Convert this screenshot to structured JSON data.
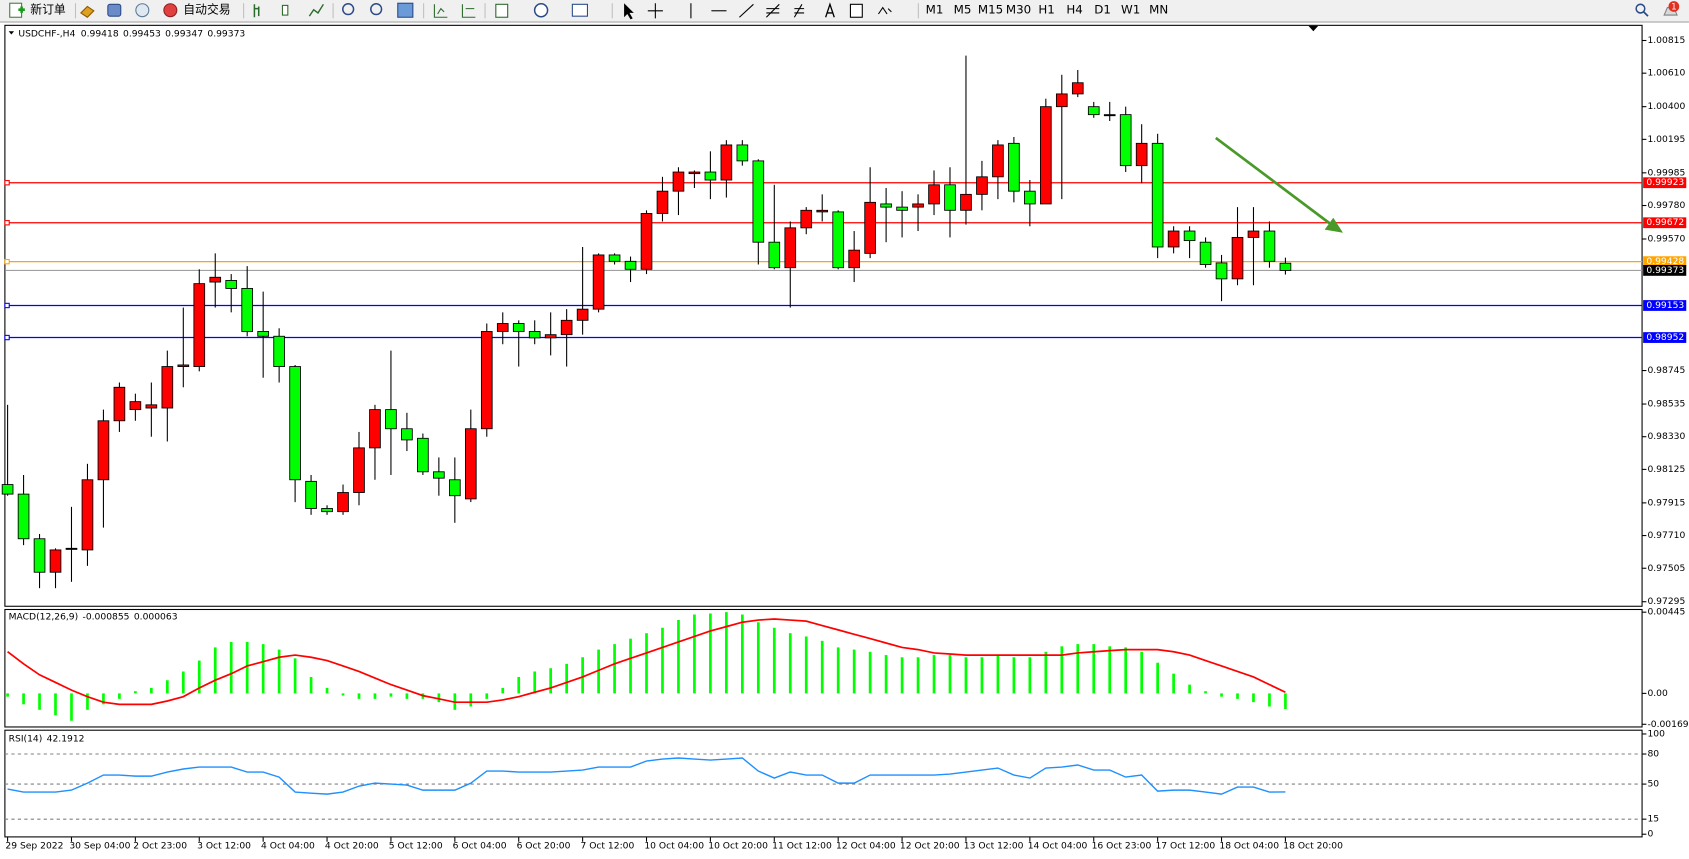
{
  "toolbar": {
    "new_order": "新订单",
    "auto_trading": "自动交易",
    "timeframes": [
      "M1",
      "M5",
      "M15",
      "M30",
      "H1",
      "H4",
      "D1",
      "W1",
      "MN"
    ],
    "badge": "1"
  },
  "chart_data": [
    {
      "type": "candlestick",
      "symbol": "USDCHF-,H4",
      "up_color": "#ff0000",
      "down_color": "#00ff00",
      "wick_color": "#000000",
      "categories": [
        "29 Sep 2022",
        null,
        null,
        null,
        "30 Sep 04:00",
        null,
        null,
        null,
        "2 Oct 23:00",
        null,
        null,
        null,
        "3 Oct 12:00",
        null,
        null,
        null,
        "4 Oct 04:00",
        null,
        null,
        null,
        "4 Oct 20:00",
        null,
        null,
        null,
        "5 Oct 12:00",
        null,
        null,
        null,
        "6 Oct 04:00",
        null,
        null,
        null,
        "6 Oct 20:00",
        null,
        null,
        null,
        "7 Oct 12:00",
        null,
        null,
        null,
        "10 Oct 04:00",
        null,
        null,
        null,
        "10 Oct 20:00",
        null,
        null,
        null,
        "11 Oct 12:00",
        null,
        null,
        null,
        "12 Oct 04:00",
        null,
        null,
        null,
        "12 Oct 20:00",
        null,
        null,
        null,
        "13 Oct 12:00",
        null,
        null,
        null,
        "14 Oct 04:00",
        null,
        null,
        null,
        "16 Oct 23:00",
        null,
        null,
        null,
        "17 Oct 12:00",
        null,
        null,
        null,
        "18 Oct 04:00",
        null,
        null,
        null,
        "18 Oct 20:00"
      ],
      "open": [
        0.9803,
        0.9797,
        0.9769,
        0.9748,
        0.9763,
        0.9762,
        0.9806,
        0.9843,
        0.985,
        0.9851,
        0.9851,
        0.9877,
        0.9877,
        0.993,
        0.9931,
        0.9926,
        0.9899,
        0.9896,
        0.9877,
        0.9805,
        0.9788,
        0.9786,
        0.9798,
        0.9826,
        0.985,
        0.9838,
        0.9832,
        0.9811,
        0.9806,
        0.9794,
        0.9838,
        0.9899,
        0.9904,
        0.9899,
        0.9895,
        0.9897,
        0.9906,
        0.9913,
        0.9947,
        0.9943,
        0.9938,
        0.9973,
        0.9987,
        0.9998,
        0.9999,
        0.9994,
        1.0016,
        1.0006,
        0.9955,
        0.9939,
        0.9964,
        0.9974,
        0.9974,
        0.9939,
        0.9948,
        0.9979,
        0.9977,
        0.9977,
        0.9979,
        0.9991,
        0.9975,
        0.9985,
        0.9996,
        1.0017,
        0.9987,
        0.9979,
        1.004,
        1.0048,
        1.004,
        1.0035,
        1.0035,
        1.0003,
        1.0017,
        0.9952,
        0.9962,
        0.9955,
        0.9942,
        0.9932,
        0.9958,
        0.9962,
        0.99418
      ],
      "high": [
        0.9853,
        0.9809,
        0.9772,
        0.9763,
        0.9789,
        0.9816,
        0.985,
        0.9867,
        0.986,
        0.9867,
        0.9887,
        0.9914,
        0.9938,
        0.9948,
        0.9935,
        0.994,
        0.9924,
        0.9901,
        0.9878,
        0.9809,
        0.979,
        0.9803,
        0.9836,
        0.9853,
        0.9887,
        0.9848,
        0.9835,
        0.982,
        0.982,
        0.985,
        0.9904,
        0.9911,
        0.9906,
        0.9906,
        0.9911,
        0.9913,
        0.9952,
        0.9948,
        0.9948,
        0.9946,
        0.9975,
        0.9996,
        1.0002,
        1.0,
        1.0012,
        1.0019,
        1.0019,
        1.0007,
        0.9991,
        0.9968,
        0.9977,
        0.9985,
        0.9975,
        0.9962,
        1.0002,
        0.9989,
        0.9987,
        0.9985,
        1.0,
        1.0002,
        1.0072,
        1.0006,
        1.0019,
        1.0021,
        0.9994,
        1.0045,
        1.006,
        1.0063,
        1.0043,
        1.0043,
        1.004,
        1.0029,
        1.0023,
        0.9965,
        0.9965,
        0.9958,
        0.9947,
        0.9977,
        0.9977,
        0.9968,
        0.99453
      ],
      "low": [
        0.9796,
        0.9765,
        0.9738,
        0.9738,
        0.9742,
        0.9752,
        0.9776,
        0.9836,
        0.9843,
        0.9833,
        0.983,
        0.9864,
        0.9874,
        0.9914,
        0.9911,
        0.9896,
        0.987,
        0.9867,
        0.9792,
        0.9784,
        0.9784,
        0.9784,
        0.979,
        0.9806,
        0.9809,
        0.9824,
        0.9809,
        0.9796,
        0.9779,
        0.9792,
        0.9833,
        0.9891,
        0.9877,
        0.9891,
        0.9884,
        0.9877,
        0.9897,
        0.9911,
        0.9941,
        0.993,
        0.9935,
        0.9968,
        0.9972,
        0.9989,
        0.9982,
        0.9983,
        1.0003,
        0.9941,
        0.9938,
        0.9914,
        0.996,
        0.9968,
        0.9938,
        0.993,
        0.9945,
        0.9955,
        0.9958,
        0.9962,
        0.9972,
        0.9958,
        0.9966,
        0.9975,
        0.9982,
        0.998,
        0.9965,
        0.9979,
        0.9982,
        1.0046,
        1.0033,
        1.0031,
        0.9999,
        0.9992,
        0.9945,
        0.9948,
        0.9945,
        0.9939,
        0.9918,
        0.9928,
        0.9928,
        0.9939,
        0.99347
      ],
      "close": [
        0.9797,
        0.9769,
        0.9748,
        0.9762,
        0.9763,
        0.9806,
        0.9843,
        0.9864,
        0.9855,
        0.9853,
        0.9877,
        0.9878,
        0.9929,
        0.9933,
        0.9926,
        0.9899,
        0.9896,
        0.9877,
        0.9806,
        0.9788,
        0.9786,
        0.9798,
        0.9826,
        0.985,
        0.9838,
        0.9831,
        0.9811,
        0.9807,
        0.9796,
        0.9838,
        0.9899,
        0.9904,
        0.9899,
        0.9895,
        0.9897,
        0.9906,
        0.9913,
        0.9947,
        0.9943,
        0.9938,
        0.9973,
        0.9987,
        0.9999,
        0.9999,
        0.9994,
        1.0016,
        1.0006,
        0.9955,
        0.9939,
        0.9964,
        0.9975,
        0.9975,
        0.9939,
        0.995,
        0.998,
        0.9977,
        0.9975,
        0.9979,
        0.9991,
        0.9975,
        0.9985,
        0.9996,
        1.0016,
        0.9987,
        0.9979,
        1.004,
        1.0048,
        1.0055,
        1.0035,
        1.0035,
        1.0003,
        1.0017,
        0.9952,
        0.9962,
        0.9956,
        0.9941,
        0.9932,
        0.9958,
        0.9962,
        0.9943,
        0.99373
      ],
      "price_line_color": "#a0a0a0",
      "levels": [
        {
          "value": 0.99923,
          "color": "#ff0000"
        },
        {
          "value": 0.99672,
          "color": "#ff0000"
        },
        {
          "value": 0.99428,
          "color": "#ffa500"
        },
        {
          "value": 0.99153,
          "color": "#0000ff"
        },
        {
          "value": 0.98952,
          "color": "#0000ff"
        }
      ],
      "ylim": [
        0.9727,
        1.009
      ],
      "yticks": [
        1.00815,
        {
          "value": 1.0061,
          "label": "1.00610"
        },
        {
          "value": 1.004,
          "label": "1.00400"
        },
        1.00195,
        0.99985,
        {
          "value": 0.9978,
          "label": "0.99780"
        },
        {
          "value": 0.9957,
          "label": "0.99570"
        },
        0.98745,
        0.98535,
        {
          "value": 0.9833,
          "label": "0.98330"
        },
        0.98125,
        0.97915,
        {
          "value": 0.9771,
          "label": "0.97710"
        },
        0.97505,
        0.97295
      ]
    },
    {
      "type": "macd",
      "label": "MACD(12,26,9)",
      "histogram_color": "#00ff00",
      "signal_color": "#ff0000",
      "histogram": [
        -0.00018,
        -0.0006,
        -0.0009,
        -0.0012,
        -0.0015,
        -0.0009,
        -0.0006,
        -0.0003,
        0.00012,
        0.0003,
        0.00072,
        0.0012,
        0.0018,
        0.00252,
        0.00282,
        0.00282,
        0.0027,
        0.0024,
        0.00192,
        0.0009,
        0.0003,
        -0.00012,
        -0.0003,
        -0.0003,
        -0.00018,
        -0.0003,
        -0.0003,
        -0.00048,
        -0.0009,
        -0.00072,
        -0.0003,
        0.0003,
        0.0009,
        0.0012,
        0.00138,
        0.00162,
        0.00198,
        0.0024,
        0.0027,
        0.003,
        0.0033,
        0.0036,
        0.00402,
        0.00432,
        0.00438,
        0.00445,
        0.00432,
        0.0039,
        0.0036,
        0.0033,
        0.00312,
        0.00288,
        0.00252,
        0.0024,
        0.00228,
        0.0021,
        0.00198,
        0.00198,
        0.0021,
        0.0021,
        0.00198,
        0.00198,
        0.0021,
        0.00198,
        0.00198,
        0.00228,
        0.00258,
        0.0027,
        0.0027,
        0.00258,
        0.00252,
        0.00228,
        0.00168,
        0.00108,
        0.00048,
        0.00012,
        -0.00018,
        -0.0003,
        -0.00048,
        -0.00072,
        -0.000855
      ],
      "signal": [
        0.00228,
        0.00162,
        0.00102,
        0.0006,
        0.00018,
        -0.00018,
        -0.00048,
        -0.0006,
        -0.0006,
        -0.0006,
        -0.00042,
        -0.00018,
        0.0003,
        0.00072,
        0.00108,
        0.0015,
        0.00174,
        0.00198,
        0.0021,
        0.00198,
        0.0018,
        0.0015,
        0.0012,
        0.00084,
        0.00048,
        0.00018,
        -0.00012,
        -0.0003,
        -0.00048,
        -0.00048,
        -0.00048,
        -0.00036,
        -0.00018,
        6e-05,
        0.0003,
        0.0006,
        0.0009,
        0.00126,
        0.00162,
        0.00192,
        0.00222,
        0.00252,
        0.00282,
        0.00312,
        0.00342,
        0.00366,
        0.0039,
        0.00402,
        0.00408,
        0.00402,
        0.00396,
        0.00372,
        0.00348,
        0.00324,
        0.003,
        0.00276,
        0.00252,
        0.0024,
        0.00222,
        0.00216,
        0.0021,
        0.0021,
        0.0021,
        0.0021,
        0.0021,
        0.0021,
        0.0021,
        0.00222,
        0.00228,
        0.00234,
        0.0024,
        0.0024,
        0.0024,
        0.00228,
        0.0021,
        0.0018,
        0.0015,
        0.0012,
        0.0009,
        0.00048,
        6.3e-05
      ],
      "ylim": [
        -0.001693,
        0.00445
      ],
      "yticks": [
        0.00445,
        {
          "value": 0,
          "label": "0.00"
        },
        -0.001693
      ]
    },
    {
      "type": "rsi",
      "label": "RSI(14)",
      "color": "#1e90ff",
      "values": [
        45,
        42,
        42,
        42,
        44,
        51,
        59,
        59,
        58,
        58,
        62,
        65,
        67,
        67,
        67,
        62,
        62,
        57,
        42,
        41,
        40,
        42,
        48,
        51,
        50,
        49,
        44,
        44,
        44,
        51,
        63,
        63,
        62,
        62,
        62,
        63,
        64,
        67,
        67,
        67,
        73,
        75,
        76,
        75,
        74,
        75,
        76,
        63,
        56,
        62,
        59,
        59,
        51,
        51,
        59,
        59,
        59,
        59,
        59,
        60,
        62,
        64,
        66,
        59,
        56,
        66,
        67,
        69,
        64,
        64,
        57,
        59,
        43,
        44,
        44,
        42,
        40,
        47,
        47,
        42,
        42.1912
      ],
      "ylim": [
        0,
        100
      ],
      "yticks": [
        100,
        80,
        50,
        15,
        0
      ]
    }
  ]
}
